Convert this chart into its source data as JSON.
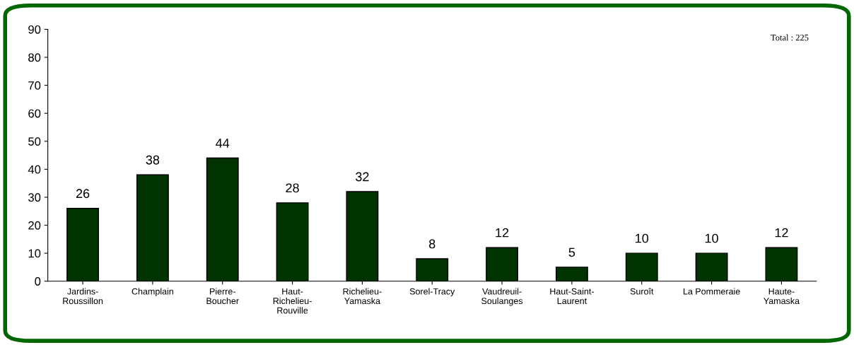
{
  "chart_data": {
    "type": "bar",
    "categories": [
      "Jardins-\nRoussillon",
      "Champlain",
      "Pierre-\nBoucher",
      "Haut-\nRichelieu-\nRouville",
      "Richelieu-\nYamaska",
      "Sorel-Tracy",
      "Vaudreuil-\nSoulanges",
      "Haut-Saint-\nLaurent",
      "Suroît",
      "La Pommeraie",
      "Haute-\nYamaska"
    ],
    "values": [
      26,
      38,
      44,
      28,
      32,
      8,
      12,
      5,
      10,
      10,
      12
    ],
    "color": "#003300",
    "data_labels": true,
    "ylim": [
      0,
      90
    ],
    "yticks": [
      0,
      10,
      20,
      30,
      40,
      50,
      60,
      70,
      80,
      90
    ],
    "grid": false,
    "annotations": [
      "Total : 225"
    ]
  }
}
